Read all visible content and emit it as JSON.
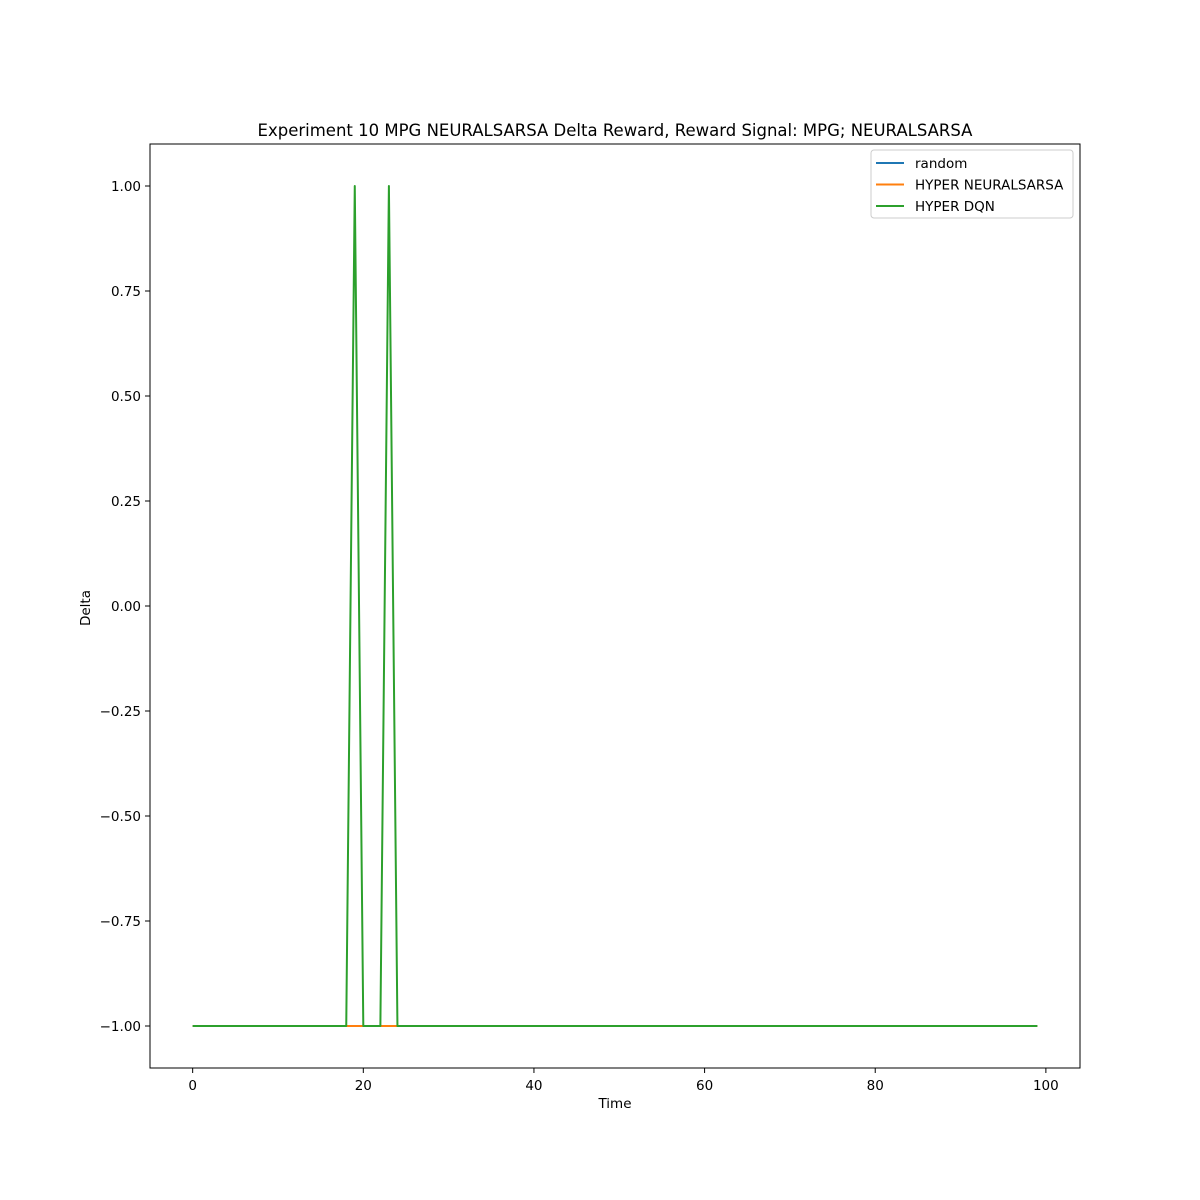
{
  "chart_data": {
    "type": "line",
    "title": "Experiment 10 MPG NEURALSARSA Delta Reward,  Reward Signal: MPG; NEURALSARSA",
    "xlabel": "Time",
    "ylabel": "Delta",
    "xlim": [
      -5,
      104
    ],
    "ylim": [
      -1.1,
      1.1
    ],
    "xticks": [
      0,
      20,
      40,
      60,
      80,
      100
    ],
    "xtick_labels": [
      "0",
      "20",
      "40",
      "60",
      "80",
      "100"
    ],
    "yticks": [
      -1.0,
      -0.75,
      -0.5,
      -0.25,
      0.0,
      0.25,
      0.5,
      0.75,
      1.0
    ],
    "ytick_labels": [
      "−1.00",
      "−0.75",
      "−0.50",
      "−0.25",
      "0.00",
      "0.25",
      "0.50",
      "0.75",
      "1.00"
    ],
    "grid": false,
    "legend_position": "top-right",
    "series": [
      {
        "name": "random",
        "color": "#1f77b4",
        "x_range": [
          0,
          99
        ],
        "baseline": -1,
        "spikes": []
      },
      {
        "name": "HYPER NEURALSARSA",
        "color": "#ff7f0e",
        "x_range": [
          0,
          99
        ],
        "baseline": -1,
        "spikes": []
      },
      {
        "name": "HYPER DQN",
        "color": "#2ca02c",
        "x_range": [
          0,
          99
        ],
        "baseline": -1,
        "spikes": [
          {
            "x": 19,
            "y": 1
          },
          {
            "x": 23,
            "y": 1
          }
        ]
      }
    ]
  }
}
